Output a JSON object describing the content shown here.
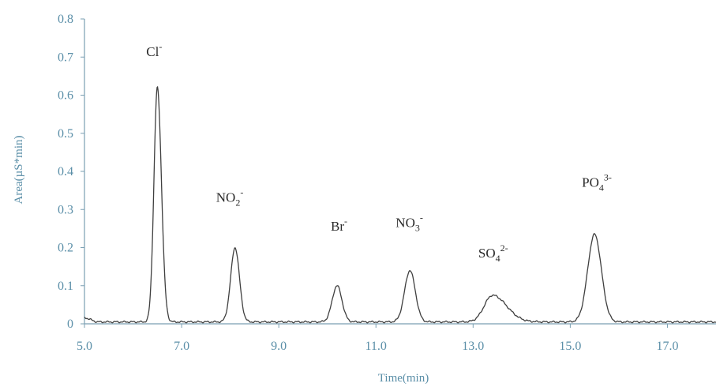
{
  "chart_data": {
    "type": "line",
    "xlabel": "Time(min)",
    "ylabel": "Area(µS*min)",
    "xlim": [
      5.0,
      18.0
    ],
    "ylim": [
      0,
      0.8
    ],
    "x_ticks": [
      "5.0",
      "7.0",
      "9.0",
      "11.0",
      "13.0",
      "15.0",
      "17.0"
    ],
    "y_ticks": [
      "0",
      "0.1",
      "0.2",
      "0.3",
      "0.4",
      "0.5",
      "0.6",
      "0.7",
      "0.8"
    ],
    "baseline": 0.005,
    "peaks": [
      {
        "label": "Cl",
        "superscript": "-",
        "x": 6.5,
        "y": 0.62
      },
      {
        "label": "NO",
        "subscript": "2",
        "superscript": "-",
        "x": 8.1,
        "y": 0.2
      },
      {
        "label": "Br",
        "superscript": "-",
        "x": 10.2,
        "y": 0.1
      },
      {
        "label": "NO",
        "subscript": "3",
        "superscript": "-",
        "x": 11.7,
        "y": 0.14
      },
      {
        "label": "SO",
        "subscript": "4",
        "superscript": "2-",
        "x": 13.4,
        "y": 0.075
      },
      {
        "label": "PO",
        "subscript": "4",
        "superscript": "3-",
        "x": 15.5,
        "y": 0.235
      }
    ],
    "colors": {
      "trace": "#3f3f3f",
      "axis": "#5b8fa8"
    },
    "grid": false,
    "legend": "none"
  }
}
